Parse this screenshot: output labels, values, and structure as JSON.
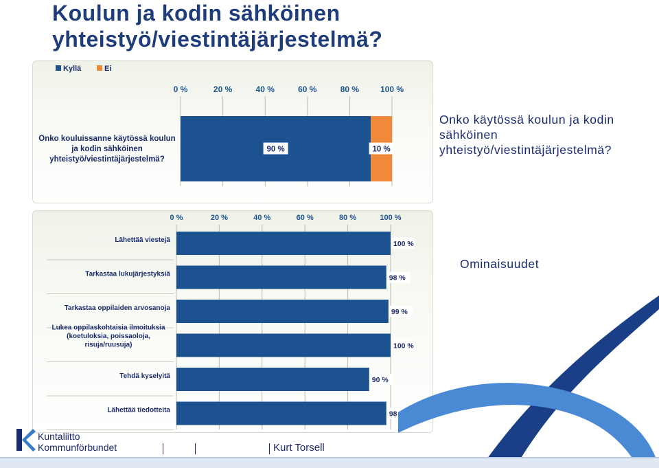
{
  "title": {
    "line1": "Koulun ja kodin sähköinen",
    "line2": "yhteistyö/viestintäjärjestelmä?"
  },
  "question_text": {
    "line1": "Onko käytössä koulun ja kodin",
    "line2": "sähköinen",
    "line3": "yhteistyö/viestintäjärjestelmä?"
  },
  "features_label": "Ominaisuudet",
  "footer": {
    "logo_line1": "Kuntaliitto",
    "logo_line2": "Kommunförbundet",
    "author": "Kurt Torsell"
  },
  "colors": {
    "title": "#1f3d7a",
    "bar_blue": "#1d5290",
    "bar_orange": "#f08a3a",
    "brand_dark": "#1a2a6e",
    "brand_light": "#3b7bc8"
  },
  "chart_data": [
    {
      "type": "bar",
      "orientation": "horizontal",
      "stacked": true,
      "categories": [
        "Onko kouluissanne käytössä koulun ja kodin sähköinen yhteistyö/viestintäjärjestelmä?"
      ],
      "category_lines": [
        [
          "Onko kouluissanne käytössä koulun",
          "ja kodin sähköinen",
          "yhteistyö/viestintäjärjestelmä?"
        ]
      ],
      "series": [
        {
          "name": "Kyllä",
          "values": [
            90
          ],
          "labels": [
            "90 %"
          ],
          "color": "#1d5290"
        },
        {
          "name": "Ei",
          "values": [
            10
          ],
          "labels": [
            "10 %"
          ],
          "color": "#f08a3a"
        }
      ],
      "xlim": [
        0,
        100
      ],
      "ticks": [
        0,
        20,
        40,
        60,
        80,
        100
      ],
      "tick_labels": [
        "0 %",
        "20 %",
        "40 %",
        "60 %",
        "80 %",
        "100 %"
      ],
      "legend": "top-left",
      "grid": true
    },
    {
      "type": "bar",
      "orientation": "horizontal",
      "categories": [
        "Lähettää viestejä",
        "Tarkastaa lukujärjestyksiä",
        "Tarkastaa oppilaiden arvosanoja",
        "Lukea oppilaskohtaisia ilmoituksia (koetuloksia, poissaoloja, risuja/ruusuja)",
        "Tehdä kyselyitä",
        "Lähettää tiedotteita"
      ],
      "category_lines": [
        [
          "Lähettää viestejä"
        ],
        [
          "Tarkastaa lukujärjestyksiä"
        ],
        [
          "Tarkastaa oppilaiden arvosanoja"
        ],
        [
          "Lukea oppilaskohtaisia ilmoituksia",
          "(koetuloksia, poissaoloja,",
          "risuja/ruusuja)"
        ],
        [
          "Tehdä kyselyitä"
        ],
        [
          "Lähettää tiedotteita"
        ]
      ],
      "values": [
        100,
        98,
        99,
        100,
        90,
        98
      ],
      "value_labels": [
        "100 %",
        "98 %",
        "99 %",
        "100 %",
        "90 %",
        "98 %"
      ],
      "xlim": [
        0,
        100
      ],
      "ticks": [
        0,
        20,
        40,
        60,
        80,
        100
      ],
      "tick_labels": [
        "0 %",
        "20 %",
        "40 %",
        "60 %",
        "80 %",
        "100 %"
      ],
      "grid": true
    }
  ]
}
